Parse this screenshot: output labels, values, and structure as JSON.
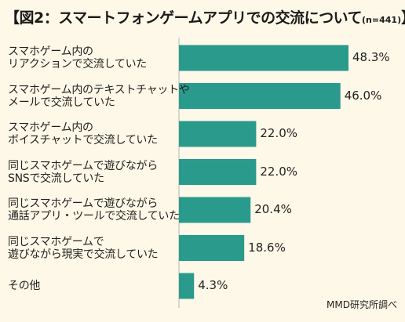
{
  "title": {
    "open": "【",
    "text": "図2：スマートフォンゲームアプリでの交流について",
    "n": "(n=441)",
    "close": "】"
  },
  "source": "MMD研究所調べ",
  "colors": {
    "bar": "#2a9a8c",
    "background": "#fdf8e7",
    "grid": "#b5b5b5"
  },
  "chart_data": {
    "type": "bar",
    "orientation": "horizontal",
    "title": "図2：スマートフォンゲームアプリでの交流について",
    "n": "(n=441)",
    "unit": "%",
    "categories": [
      [
        "スマホゲーム内の",
        "リアクションで交流していた"
      ],
      [
        "スマホゲーム内のテキストチャットや",
        "メールで交流していた"
      ],
      [
        "スマホゲーム内の",
        "ボイスチャットで交流していた"
      ],
      [
        "同じスマホゲームで遊びながら",
        "SNSで交流していた"
      ],
      [
        "同じスマホゲームで遊びながら",
        "通話アプリ・ツールで交流していた"
      ],
      [
        "同じスマホゲームで",
        "遊びながら現実で交流していた"
      ],
      [
        "その他"
      ]
    ],
    "values": [
      48.3,
      46.0,
      22.0,
      22.0,
      20.4,
      18.6,
      4.3
    ],
    "value_labels": [
      "48.3%",
      "46.0%",
      "22.0%",
      "22.0%",
      "20.4%",
      "18.6%",
      "4.3%"
    ],
    "xlim": [
      0,
      50
    ]
  }
}
